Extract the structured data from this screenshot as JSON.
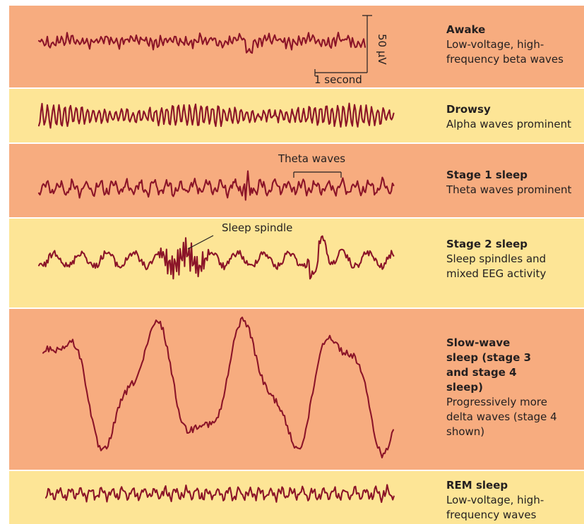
{
  "colors": {
    "band_orange": "#f7ac7f",
    "band_yellow": "#fde596",
    "trace": "#8b1428",
    "text": "#231f20"
  },
  "bands": [
    {
      "title": "Awake",
      "description": "Low-voltage, high-frequency beta waves",
      "fill": "orange"
    },
    {
      "title": "Drowsy",
      "description": "Alpha waves prominent",
      "fill": "yellow"
    },
    {
      "title": "Stage 1 sleep",
      "description": "Theta waves prominent",
      "fill": "orange"
    },
    {
      "title": "Stage 2 sleep",
      "description": "Sleep spindles and mixed EEG activity",
      "fill": "yellow"
    },
    {
      "title": "Slow-wave sleep (stage 3 and stage 4 sleep)",
      "description": "Progressively more delta waves (stage 4 shown)",
      "fill": "orange"
    },
    {
      "title": "REM sleep",
      "description": "Low-voltage, high-frequency waves",
      "fill": "yellow"
    }
  ],
  "annotations": {
    "scale_time": "1 second",
    "scale_voltage": "50 µV",
    "theta_label": "Theta waves",
    "spindle_label": "Sleep spindle"
  }
}
